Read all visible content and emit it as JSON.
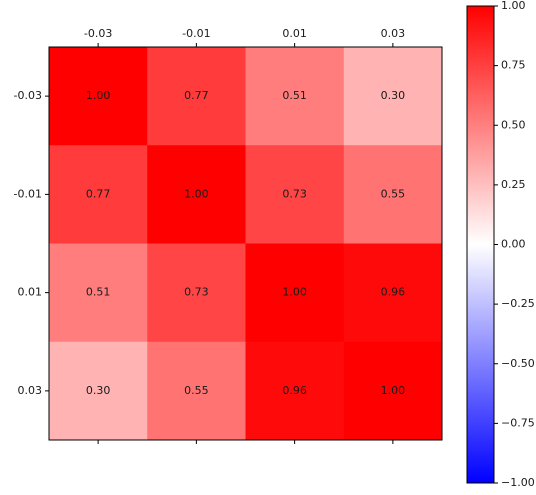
{
  "chart_data": {
    "type": "heatmap",
    "x_categories": [
      "-0.03",
      "-0.01",
      "0.01",
      "0.03"
    ],
    "y_categories": [
      "-0.03",
      "-0.01",
      "0.01",
      "0.03"
    ],
    "values": [
      [
        1.0,
        0.77,
        0.51,
        0.3
      ],
      [
        0.77,
        1.0,
        0.73,
        0.55
      ],
      [
        0.51,
        0.73,
        1.0,
        0.96
      ],
      [
        0.3,
        0.55,
        0.96,
        1.0
      ]
    ],
    "value_labels": [
      [
        "1.00",
        "0.77",
        "0.51",
        "0.30"
      ],
      [
        "0.77",
        "1.00",
        "0.73",
        "0.55"
      ],
      [
        "0.51",
        "0.73",
        "1.00",
        "0.96"
      ],
      [
        "0.30",
        "0.55",
        "0.96",
        "1.00"
      ]
    ],
    "x_axis_position": "top",
    "colormap": "bwr",
    "colormap_colors": {
      "low": "#0000ff",
      "mid": "#ffffff",
      "high": "#ff0000"
    },
    "vmin": -1.0,
    "vmax": 1.0,
    "colorbar_ticks": [
      "1.00",
      "0.75",
      "0.50",
      "0.25",
      "0.00",
      "−0.25",
      "−0.50",
      "−0.75",
      "−1.00"
    ],
    "colorbar_tick_values": [
      1.0,
      0.75,
      0.5,
      0.25,
      0.0,
      -0.25,
      -0.5,
      -0.75,
      -1.0
    ],
    "legend_position": "right",
    "grid": false
  }
}
